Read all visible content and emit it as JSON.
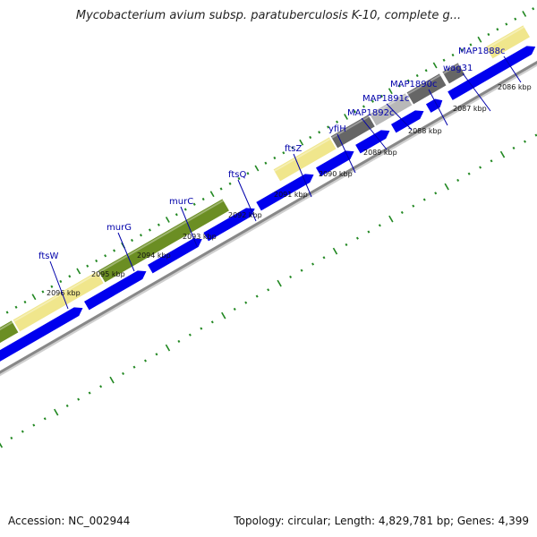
{
  "title": "Mycobacterium avium subsp. paratuberculosis K-10, complete g...",
  "footer": {
    "accession": "Accession: NC_002944",
    "topology": "Topology: circular; Length: 4,829,781 bp; Genes: 4,399"
  },
  "colors": {
    "cds_forward": "#0000ee",
    "backbone": "#888888",
    "tick": "#228822",
    "label_text": "#0000aa",
    "cog_green": "#6b8e23",
    "cog_khaki": "#f0e68c",
    "cog_darkgray": "#666666",
    "cog_lightgray": "#b8b8b8"
  },
  "kbp_labels": [
    "2096 kbp",
    "2095 kbp",
    "2094 kbp",
    "2093 kbp",
    "2092 kbp",
    "2091 kbp",
    "2090 kbp",
    "2089 kbp",
    "2088 kbp",
    "2087 kbp",
    "2086 kbp"
  ],
  "genes": [
    {
      "name": "ftsW",
      "color": "cog_khaki"
    },
    {
      "name": "murG",
      "color": "cog_green"
    },
    {
      "name": "murC",
      "color": "cog_green"
    },
    {
      "name": "ftsQ",
      "color": "none"
    },
    {
      "name": "ftsZ",
      "color": "cog_khaki"
    },
    {
      "name": "yfiH",
      "color": "cog_darkgray"
    },
    {
      "name": "MAP1892c",
      "color": "cog_lightgray"
    },
    {
      "name": "MAP1891c",
      "color": "cog_darkgray"
    },
    {
      "name": "MAP1890c",
      "color": "cog_darkgray"
    },
    {
      "name": "wag31",
      "color": "cog_khaki"
    },
    {
      "name": "MAP1888c",
      "color": "none"
    }
  ]
}
